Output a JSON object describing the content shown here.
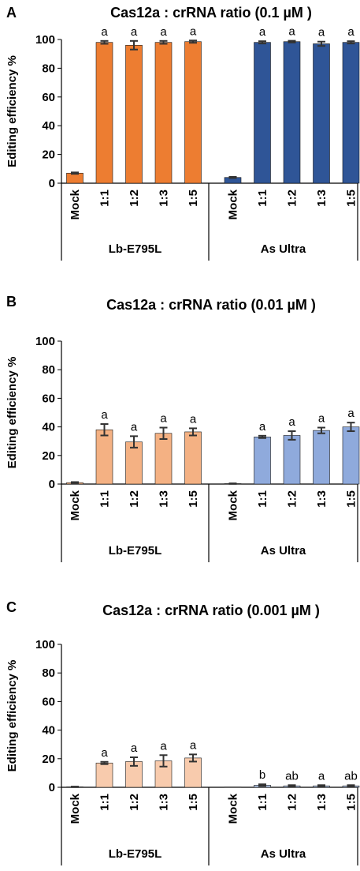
{
  "chart_data": [
    {
      "type": "bar",
      "panel": "A",
      "title": "Cas12a : crRNA ratio (0.1 µM )",
      "ylabel": "Editing efficiency %",
      "ylim": [
        0,
        100
      ],
      "yticks": [
        "0",
        "20",
        "40",
        "60",
        "80",
        "100"
      ],
      "categories": [
        "Mock",
        "1:1",
        "1:2",
        "1:3",
        "1:5",
        "Mock",
        "1:1",
        "1:2",
        "1:3",
        "1:5"
      ],
      "groups": [
        {
          "name": "Lb-E795L",
          "color": "#ed7d31",
          "values": [
            7,
            98,
            96,
            98,
            98.5
          ],
          "errors": [
            0.5,
            1,
            3,
            1,
            0.8
          ],
          "letters": [
            "",
            "a",
            "a",
            "a",
            "a"
          ]
        },
        {
          "name": "As Ultra",
          "color": "#2f5597",
          "values": [
            4,
            98,
            98.5,
            97,
            98
          ],
          "errors": [
            0.4,
            0.8,
            0.6,
            1.5,
            0.8
          ],
          "letters": [
            "",
            "a",
            "a",
            "a",
            "a"
          ]
        }
      ]
    },
    {
      "type": "bar",
      "panel": "B",
      "title": "Cas12a : crRNA ratio (0.01 µM )",
      "ylabel": "Editing efficiency %",
      "ylim": [
        0,
        100
      ],
      "yticks": [
        "0",
        "20",
        "40",
        "60",
        "80",
        "100"
      ],
      "categories": [
        "Mock",
        "1:1",
        "1:2",
        "1:3",
        "1:5",
        "Mock",
        "1:1",
        "1:2",
        "1:3",
        "1:5"
      ],
      "groups": [
        {
          "name": "Lb-E795L",
          "color": "#f4b183",
          "values": [
            1,
            38,
            29.5,
            35.5,
            36.5
          ],
          "errors": [
            0.4,
            4,
            4,
            4,
            2.5
          ],
          "letters": [
            "",
            "a",
            "a",
            "a",
            "a"
          ]
        },
        {
          "name": "As Ultra",
          "color": "#8faadc",
          "values": [
            0.3,
            33,
            34,
            37.5,
            40
          ],
          "errors": [
            0.2,
            0.8,
            3,
            2,
            3
          ],
          "letters": [
            "",
            "a",
            "a",
            "a",
            "a"
          ]
        }
      ]
    },
    {
      "type": "bar",
      "panel": "C",
      "title": "Cas12a : crRNA ratio (0.001 µM )",
      "ylabel": "Editing efficiency %",
      "ylim": [
        0,
        100
      ],
      "yticks": [
        "0",
        "20",
        "40",
        "60",
        "80",
        "100"
      ],
      "categories": [
        "Mock",
        "1:1",
        "1:2",
        "1:3",
        "1:5",
        "Mock",
        "1:1",
        "1:2",
        "1:3",
        "1:5"
      ],
      "groups": [
        {
          "name": "Lb-E795L",
          "color": "#f8cbad",
          "values": [
            0.3,
            17,
            18,
            18.5,
            20.5
          ],
          "errors": [
            0.2,
            0.8,
            3,
            4,
            2.5
          ],
          "letters": [
            "",
            "a",
            "a",
            "a",
            "a"
          ]
        },
        {
          "name": "As Ultra",
          "color": "#b4c7e7",
          "values": [
            0.2,
            1.5,
            1,
            1,
            1
          ],
          "errors": [
            0.1,
            0.6,
            0.5,
            0.5,
            0.5
          ],
          "letters": [
            "",
            "b",
            "ab",
            "a",
            "ab"
          ]
        }
      ]
    }
  ]
}
